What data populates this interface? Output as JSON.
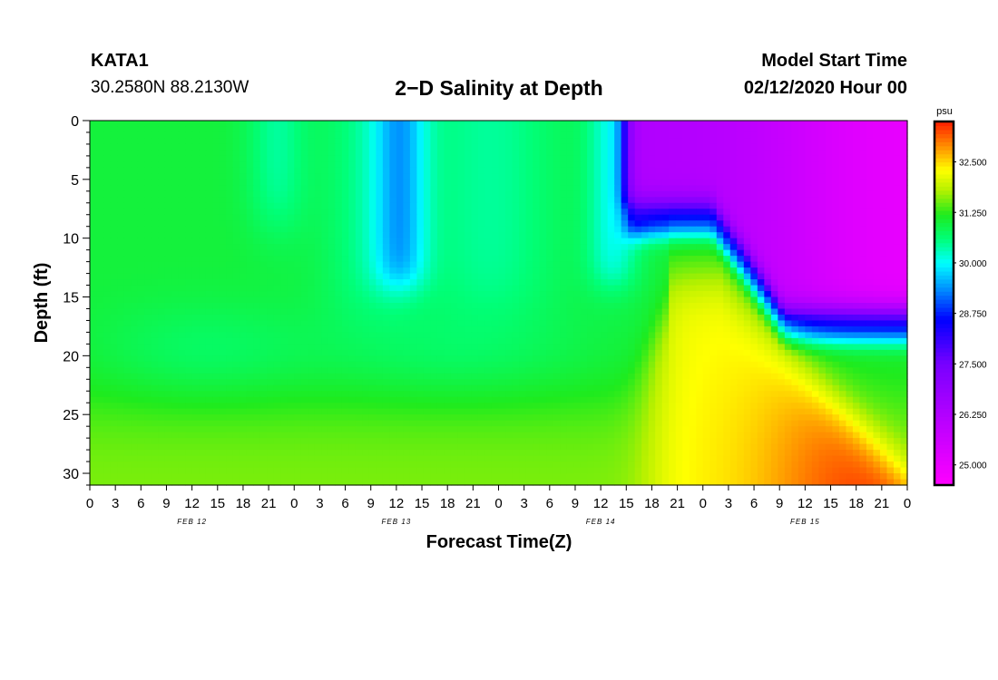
{
  "header": {
    "station_id": "KATA1",
    "coords": "30.2580N 88.2130W",
    "title": "2−D Salinity at Depth",
    "start_label": "Model Start Time",
    "start_value": "02/12/2020 Hour 00"
  },
  "chart_data": {
    "type": "heatmap",
    "title": "2−D Salinity at Depth",
    "xlabel": "Forecast Time(Z)",
    "ylabel": "Depth (ft)",
    "x_hours": [
      0,
      96
    ],
    "y_range": [
      0,
      31
    ],
    "y_ticks": [
      0,
      5,
      10,
      15,
      20,
      25,
      30
    ],
    "x_tick_labels": [
      "0",
      "3",
      "6",
      "9",
      "12",
      "15",
      "18",
      "21",
      "0",
      "3",
      "6",
      "9",
      "12",
      "15",
      "18",
      "21",
      "0",
      "3",
      "6",
      "9",
      "12",
      "15",
      "18",
      "21",
      "0",
      "3",
      "6",
      "9",
      "12",
      "15",
      "18",
      "21",
      "0"
    ],
    "date_labels": [
      {
        "text": "FEB 12",
        "hour": 12
      },
      {
        "text": "FEB 13",
        "hour": 36
      },
      {
        "text": "FEB 14",
        "hour": 60
      },
      {
        "text": "FEB 15",
        "hour": 84
      }
    ],
    "colorbar": {
      "unit": "psu",
      "range": [
        24.5,
        33.5
      ],
      "ticks": [
        "25.000",
        "26.250",
        "27.500",
        "28.750",
        "30.000",
        "31.250",
        "32.500"
      ],
      "tick_values": [
        25.0,
        26.25,
        27.5,
        28.75,
        30.0,
        31.25,
        32.5
      ]
    },
    "field_description": "Salinity by depth and forecast hour: ~30.5-31.5 psu through Feb 12-14 with fresher cyan pulses near the surface (hours 20-24, 34-40, 59-64); after hour 62 a fresh 26 psu surface layer deepens to about 16 ft while saltier water (32-33.5 psu) rises from the bottom."
  }
}
